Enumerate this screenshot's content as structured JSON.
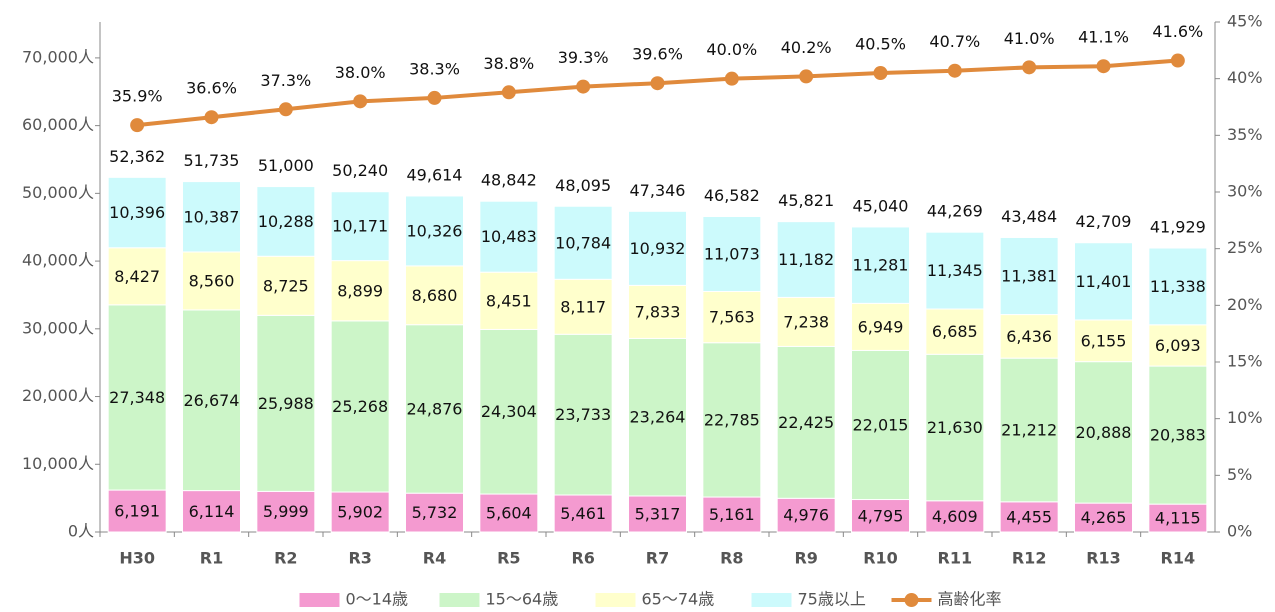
{
  "chart_data": {
    "type": "stacked-bar-line",
    "categories": [
      "H30",
      "R1",
      "R2",
      "R3",
      "R4",
      "R5",
      "R6",
      "R7",
      "R8",
      "R9",
      "R10",
      "R11",
      "R12",
      "R13",
      "R14"
    ],
    "series": [
      {
        "name": "0～14歳",
        "color": "#f49ad0",
        "values": [
          6191,
          6114,
          5999,
          5902,
          5732,
          5604,
          5461,
          5317,
          5161,
          4976,
          4795,
          4609,
          4455,
          4265,
          4115
        ],
        "value_labels": [
          "6,191",
          "6,114",
          "5,999",
          "5,902",
          "5,732",
          "5,604",
          "5,461",
          "5,317",
          "5,161",
          "4,976",
          "4,795",
          "4,609",
          "4,455",
          "4,265",
          "4,115"
        ]
      },
      {
        "name": "15～64歳",
        "color": "#ccf5c8",
        "values": [
          27348,
          26674,
          25988,
          25268,
          24876,
          24304,
          23733,
          23264,
          22785,
          22425,
          22015,
          21630,
          21212,
          20888,
          20383
        ],
        "value_labels": [
          "27,348",
          "26,674",
          "25,988",
          "25,268",
          "24,876",
          "24,304",
          "23,733",
          "23,264",
          "22,785",
          "22,425",
          "22,015",
          "21,630",
          "21,212",
          "20,888",
          "20,383"
        ]
      },
      {
        "name": "65～74歳",
        "color": "#ffffcc",
        "values": [
          8427,
          8560,
          8725,
          8899,
          8680,
          8451,
          8117,
          7833,
          7563,
          7238,
          6949,
          6685,
          6436,
          6155,
          6093
        ],
        "value_labels": [
          "8,427",
          "8,560",
          "8,725",
          "8,899",
          "8,680",
          "8,451",
          "8,117",
          "7,833",
          "7,563",
          "7,238",
          "6,949",
          "6,685",
          "6,436",
          "6,155",
          "6,093"
        ]
      },
      {
        "name": "75歳以上",
        "color": "#ccfafc",
        "values": [
          10396,
          10387,
          10288,
          10171,
          10326,
          10483,
          10784,
          10932,
          11073,
          11182,
          11281,
          11345,
          11381,
          11401,
          11338
        ],
        "value_labels": [
          "10,396",
          "10,387",
          "10,288",
          "10,171",
          "10,326",
          "10,483",
          "10,784",
          "10,932",
          "11,073",
          "11,182",
          "11,281",
          "11,345",
          "11,381",
          "11,401",
          "11,338"
        ]
      },
      {
        "name": "高齢化率",
        "color": "#e08a3c",
        "axis": "y2",
        "values": [
          35.9,
          36.6,
          37.3,
          38.0,
          38.3,
          38.8,
          39.3,
          39.6,
          40.0,
          40.2,
          40.5,
          40.7,
          41.0,
          41.1,
          41.6
        ],
        "value_labels": [
          "35.9%",
          "36.6%",
          "37.3%",
          "38.0%",
          "38.3%",
          "38.8%",
          "39.3%",
          "39.6%",
          "40.0%",
          "40.2%",
          "40.5%",
          "40.7%",
          "41.0%",
          "41.1%",
          "41.6%"
        ]
      }
    ],
    "totals": [
      52362,
      51735,
      51000,
      50240,
      49614,
      48842,
      48095,
      47346,
      46582,
      45821,
      45040,
      44269,
      43484,
      42709,
      41929
    ],
    "total_labels": [
      "52,362",
      "51,735",
      "51,000",
      "50,240",
      "49,614",
      "48,842",
      "48,095",
      "47,346",
      "46,582",
      "45,821",
      "45,040",
      "44,269",
      "43,484",
      "42,709",
      "41,929"
    ],
    "ylim": [
      0,
      75300
    ],
    "yticks": [
      {
        "value": 0,
        "label": "0人"
      },
      {
        "value": 10000,
        "label": "10,000人"
      },
      {
        "value": 20000,
        "label": "20,000人"
      },
      {
        "value": 30000,
        "label": "30,000人"
      },
      {
        "value": 40000,
        "label": "40,000人"
      },
      {
        "value": 50000,
        "label": "50,000人"
      },
      {
        "value": 60000,
        "label": "60,000人"
      },
      {
        "value": 70000,
        "label": "70,000人"
      }
    ],
    "y2lim": [
      0,
      45
    ],
    "y2ticks": [
      {
        "value": 0,
        "label": "0%"
      },
      {
        "value": 5,
        "label": "5%"
      },
      {
        "value": 10,
        "label": "10%"
      },
      {
        "value": 15,
        "label": "15%"
      },
      {
        "value": 20,
        "label": "20%"
      },
      {
        "value": 25,
        "label": "25%"
      },
      {
        "value": 30,
        "label": "30%"
      },
      {
        "value": 35,
        "label": "35%"
      },
      {
        "value": 40,
        "label": "40%"
      },
      {
        "value": 45,
        "label": "45%"
      }
    ],
    "grid": false,
    "legend": "bottom"
  }
}
